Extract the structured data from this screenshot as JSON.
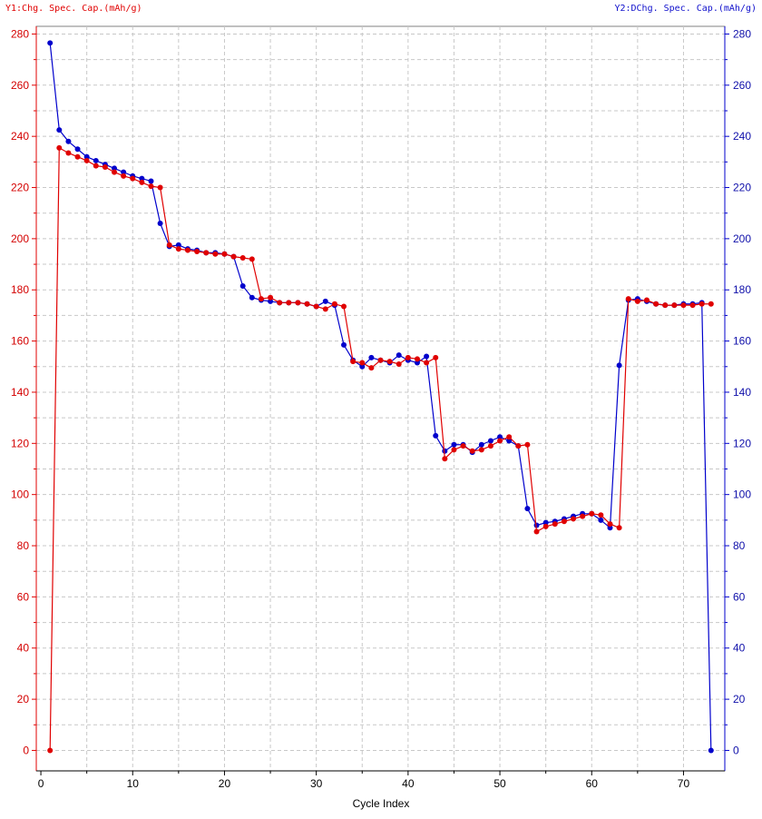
{
  "chart_data": {
    "type": "line",
    "y1_title": "Y1:Chg. Spec. Cap.(mAh/g)",
    "y2_title": "Y2:DChg. Spec. Cap.(mAh/g)",
    "xlabel": "Cycle Index",
    "xlim": [
      -0.5,
      74.5
    ],
    "ylim": [
      -8,
      283
    ],
    "x_ticks": [
      0,
      10,
      20,
      30,
      40,
      50,
      60,
      70
    ],
    "y_ticks": [
      0,
      20,
      40,
      60,
      80,
      100,
      120,
      140,
      160,
      180,
      200,
      220,
      240,
      260,
      280
    ],
    "grid": true,
    "colors": {
      "y1": "#e00000",
      "y2": "#0000cc",
      "grid": "#c8c8c8"
    },
    "series": [
      {
        "name": "Chg. Spec. Cap.",
        "axis": "y1",
        "color": "#e00000",
        "x": [
          1,
          2,
          3,
          4,
          5,
          6,
          7,
          8,
          9,
          10,
          11,
          12,
          13,
          14,
          15,
          16,
          17,
          18,
          19,
          20,
          21,
          22,
          23,
          24,
          25,
          26,
          27,
          28,
          29,
          30,
          31,
          32,
          33,
          34,
          35,
          36,
          37,
          38,
          39,
          40,
          41,
          42,
          43,
          44,
          45,
          46,
          47,
          48,
          49,
          50,
          51,
          52,
          53,
          54,
          55,
          56,
          57,
          58,
          59,
          60,
          61,
          62,
          63,
          64,
          65,
          66,
          67,
          68,
          69,
          70,
          71,
          72,
          73
        ],
        "values": [
          0,
          235.5,
          233.5,
          232,
          230.5,
          228.5,
          228,
          226,
          224.5,
          223.5,
          222,
          220.5,
          220,
          197.5,
          196,
          195.5,
          195,
          194.5,
          194,
          194,
          193,
          192.5,
          192,
          176.5,
          177,
          175,
          175,
          175,
          174.5,
          173.5,
          172.5,
          174.5,
          173.5,
          152,
          151.5,
          149.5,
          152.5,
          152,
          151,
          153.5,
          153,
          151.5,
          153.5,
          114,
          117.5,
          119,
          117,
          117.5,
          119,
          121,
          122.5,
          119,
          119.5,
          85.5,
          87.5,
          88.5,
          89.5,
          90.5,
          91.5,
          92.5,
          92,
          88.5,
          87,
          176.5,
          175.5,
          176,
          174.5,
          174,
          174,
          174,
          174,
          174.5,
          174.5
        ]
      },
      {
        "name": "DChg. Spec. Cap.",
        "axis": "y2",
        "color": "#0000cc",
        "x": [
          1,
          2,
          3,
          4,
          5,
          6,
          7,
          8,
          9,
          10,
          11,
          12,
          13,
          14,
          15,
          16,
          17,
          18,
          19,
          20,
          21,
          22,
          23,
          24,
          25,
          26,
          27,
          28,
          29,
          30,
          31,
          32,
          33,
          34,
          35,
          36,
          37,
          38,
          39,
          40,
          41,
          42,
          43,
          44,
          45,
          46,
          47,
          48,
          49,
          50,
          51,
          52,
          53,
          54,
          55,
          56,
          57,
          58,
          59,
          60,
          61,
          62,
          63,
          64,
          65,
          66,
          67,
          68,
          69,
          70,
          71,
          72,
          73
        ],
        "values": [
          276.5,
          242.5,
          238,
          235,
          232,
          230.5,
          229,
          227.5,
          226,
          224.5,
          223.5,
          222.5,
          206,
          197,
          197.5,
          196,
          195.5,
          194.5,
          194.5,
          194,
          193,
          181.5,
          177,
          176,
          175.5,
          175,
          175,
          175,
          174.5,
          173.5,
          175.5,
          174,
          158.5,
          152.5,
          150,
          153.5,
          152.5,
          151.5,
          154.5,
          152.5,
          151.5,
          154,
          123,
          117,
          119.5,
          119.5,
          116.5,
          119.5,
          121,
          122.5,
          121,
          119,
          94.5,
          88,
          89,
          89.5,
          90.5,
          91.5,
          92.5,
          92.5,
          90,
          87,
          150.5,
          176,
          176.5,
          175.5,
          174.5,
          174,
          174,
          174.5,
          174.5,
          175,
          0
        ]
      }
    ]
  }
}
